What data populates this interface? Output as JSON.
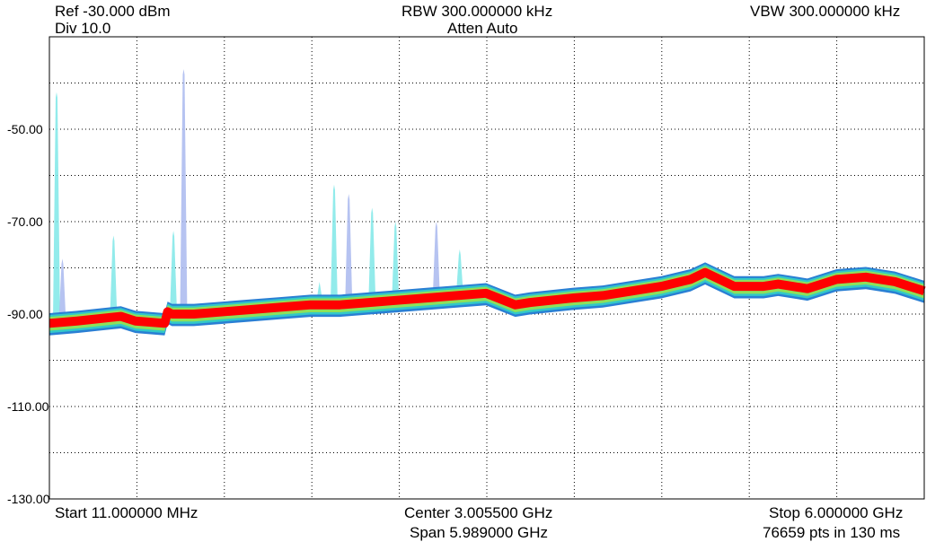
{
  "header": {
    "ref": "Ref -30.000 dBm",
    "div": "Div 10.0",
    "rbw": "RBW 300.000000 kHz",
    "atten": "Atten Auto",
    "vbw": "VBW 300.000000 kHz"
  },
  "footer": {
    "start": "Start 11.000000 MHz",
    "center": "Center 3.005500 GHz",
    "span": "Span 5.989000 GHz",
    "stop": "Stop 6.000000 GHz",
    "points": "76659 pts in 130 ms"
  },
  "colors": {
    "trace": "#ff0000",
    "envelope_outer": "#2a7fd4",
    "envelope_mid": "#32c8c8",
    "envelope_inner": "#8de05a",
    "spur_cyan": "#7fe8e8",
    "spur_lavender": "#a9b8ee",
    "grid": "#000000"
  },
  "chart_data": {
    "type": "line",
    "x_unit": "GHz",
    "y_unit": "dBm",
    "xlim": [
      0.011,
      6.0
    ],
    "ylim": [
      -130,
      -30
    ],
    "y_ticks": [
      {
        "value": -50,
        "label": "-50.00"
      },
      {
        "value": -70,
        "label": "-70.00"
      },
      {
        "value": -90,
        "label": "-90.00"
      },
      {
        "value": -110,
        "label": "-110.00"
      },
      {
        "value": -130,
        "label": "-130.00"
      }
    ],
    "grid": true,
    "grid_divisions_x": 10,
    "grid_divisions_y": 10,
    "series": [
      {
        "x": [
          0.011,
          0.2,
          0.5,
          0.6,
          0.8,
          0.82,
          0.85,
          1.0,
          1.2,
          1.4,
          1.6,
          1.8,
          2.0,
          2.2,
          2.4,
          2.6,
          2.8,
          3.0,
          3.2,
          3.3,
          3.6,
          3.8,
          4.0,
          4.2,
          4.4,
          4.5,
          4.7,
          4.9,
          5.0,
          5.2,
          5.4,
          5.6,
          5.8,
          6.0
        ],
        "y": [
          -92,
          -91.5,
          -90.5,
          -91.5,
          -92,
          -89.5,
          -90,
          -90,
          -89.5,
          -89,
          -88.5,
          -88,
          -88,
          -87.5,
          -87,
          -86.5,
          -86,
          -85.5,
          -88,
          -87.5,
          -86.5,
          -86,
          -85,
          -84,
          -82.5,
          -81,
          -84,
          -84,
          -83.5,
          -84.5,
          -82.5,
          -82,
          -83,
          -85
        ]
      }
    ],
    "spurs": [
      {
        "x": 0.06,
        "y": -42
      },
      {
        "x": 0.1,
        "y": -78
      },
      {
        "x": 0.45,
        "y": -73
      },
      {
        "x": 0.86,
        "y": -72
      },
      {
        "x": 0.93,
        "y": -37
      },
      {
        "x": 1.86,
        "y": -83
      },
      {
        "x": 1.96,
        "y": -62
      },
      {
        "x": 2.06,
        "y": -64
      },
      {
        "x": 2.22,
        "y": -67
      },
      {
        "x": 2.38,
        "y": -70
      },
      {
        "x": 2.66,
        "y": -70
      },
      {
        "x": 2.82,
        "y": -76
      }
    ]
  }
}
